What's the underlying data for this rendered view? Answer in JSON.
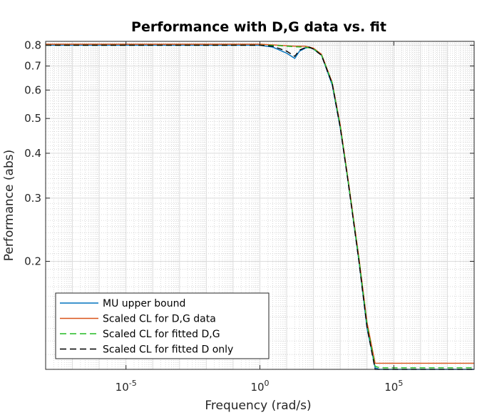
{
  "chart_data": {
    "type": "line",
    "title": "Performance with D,G data vs. fit",
    "xlabel": "Frequency (rad/s)",
    "ylabel": "Performance (abs)",
    "xscale": "log",
    "yscale": "log",
    "xlim": [
      1e-08,
      100000000.0
    ],
    "ylim": [
      0.1,
      0.82
    ],
    "grid": true,
    "minor_grid": true,
    "legend_location": "bottom-left",
    "x_ticks": [
      {
        "value": 1e-05,
        "base": "10",
        "exp": "-5"
      },
      {
        "value": 1,
        "base": "10",
        "exp": "0"
      },
      {
        "value": 100000.0,
        "base": "10",
        "exp": "5"
      }
    ],
    "y_ticks": [
      {
        "value": 0.2,
        "label": "0.2"
      },
      {
        "value": 0.3,
        "label": "0.3"
      },
      {
        "value": 0.4,
        "label": "0.4"
      },
      {
        "value": 0.5,
        "label": "0.5"
      },
      {
        "value": 0.6,
        "label": "0.6"
      },
      {
        "value": 0.7,
        "label": "0.7"
      },
      {
        "value": 0.8,
        "label": "0.8"
      }
    ],
    "series": [
      {
        "name": "MU upper bound",
        "color": "#0072BD",
        "dash": "solid",
        "x": [
          1e-08,
          0.001,
          1,
          3,
          10,
          20,
          30,
          50,
          70,
          100,
          200,
          500,
          1000,
          2000,
          5000,
          10000,
          20000,
          30000,
          100000,
          1000000,
          100000000
        ],
        "y": [
          0.8,
          0.8,
          0.8,
          0.79,
          0.76,
          0.735,
          0.77,
          0.785,
          0.79,
          0.78,
          0.75,
          0.62,
          0.47,
          0.33,
          0.2,
          0.13,
          0.101,
          0.1,
          0.1,
          0.1,
          0.1
        ]
      },
      {
        "name": "Scaled CL for D,G data",
        "color": "#D95319",
        "dash": "solid",
        "x": [
          1e-08,
          0.001,
          1,
          5,
          20,
          50,
          100,
          200,
          500,
          1000,
          2000,
          5000,
          10000,
          20000,
          30000,
          100000,
          1000000,
          100000000
        ],
        "y": [
          0.805,
          0.805,
          0.805,
          0.8,
          0.795,
          0.795,
          0.785,
          0.755,
          0.63,
          0.48,
          0.335,
          0.205,
          0.135,
          0.104,
          0.104,
          0.104,
          0.104,
          0.104
        ]
      },
      {
        "name": "Scaled CL for fitted D,G",
        "color": "#22BB22",
        "dash": "dashed",
        "x": [
          1e-08,
          0.001,
          1,
          5,
          20,
          50,
          100,
          200,
          500,
          1000,
          2000,
          5000,
          10000,
          20000,
          30000,
          100000,
          1000000,
          100000000
        ],
        "y": [
          0.8,
          0.8,
          0.8,
          0.798,
          0.792,
          0.79,
          0.782,
          0.752,
          0.628,
          0.476,
          0.332,
          0.203,
          0.133,
          0.102,
          0.101,
          0.101,
          0.101,
          0.101
        ]
      },
      {
        "name": "Scaled CL for fitted D only",
        "color": "#000000",
        "dash": "dashed",
        "x": [
          1e-08,
          0.001,
          1,
          3,
          10,
          20,
          30,
          50,
          70,
          100,
          200,
          500,
          1000,
          2000,
          5000,
          10000,
          20000,
          30000,
          100000,
          1000000,
          100000000
        ],
        "y": [
          0.8,
          0.8,
          0.8,
          0.795,
          0.77,
          0.745,
          0.775,
          0.788,
          0.79,
          0.78,
          0.75,
          0.625,
          0.472,
          0.33,
          0.2,
          0.131,
          0.1,
          0.1,
          0.1,
          0.1,
          0.1
        ]
      }
    ]
  }
}
